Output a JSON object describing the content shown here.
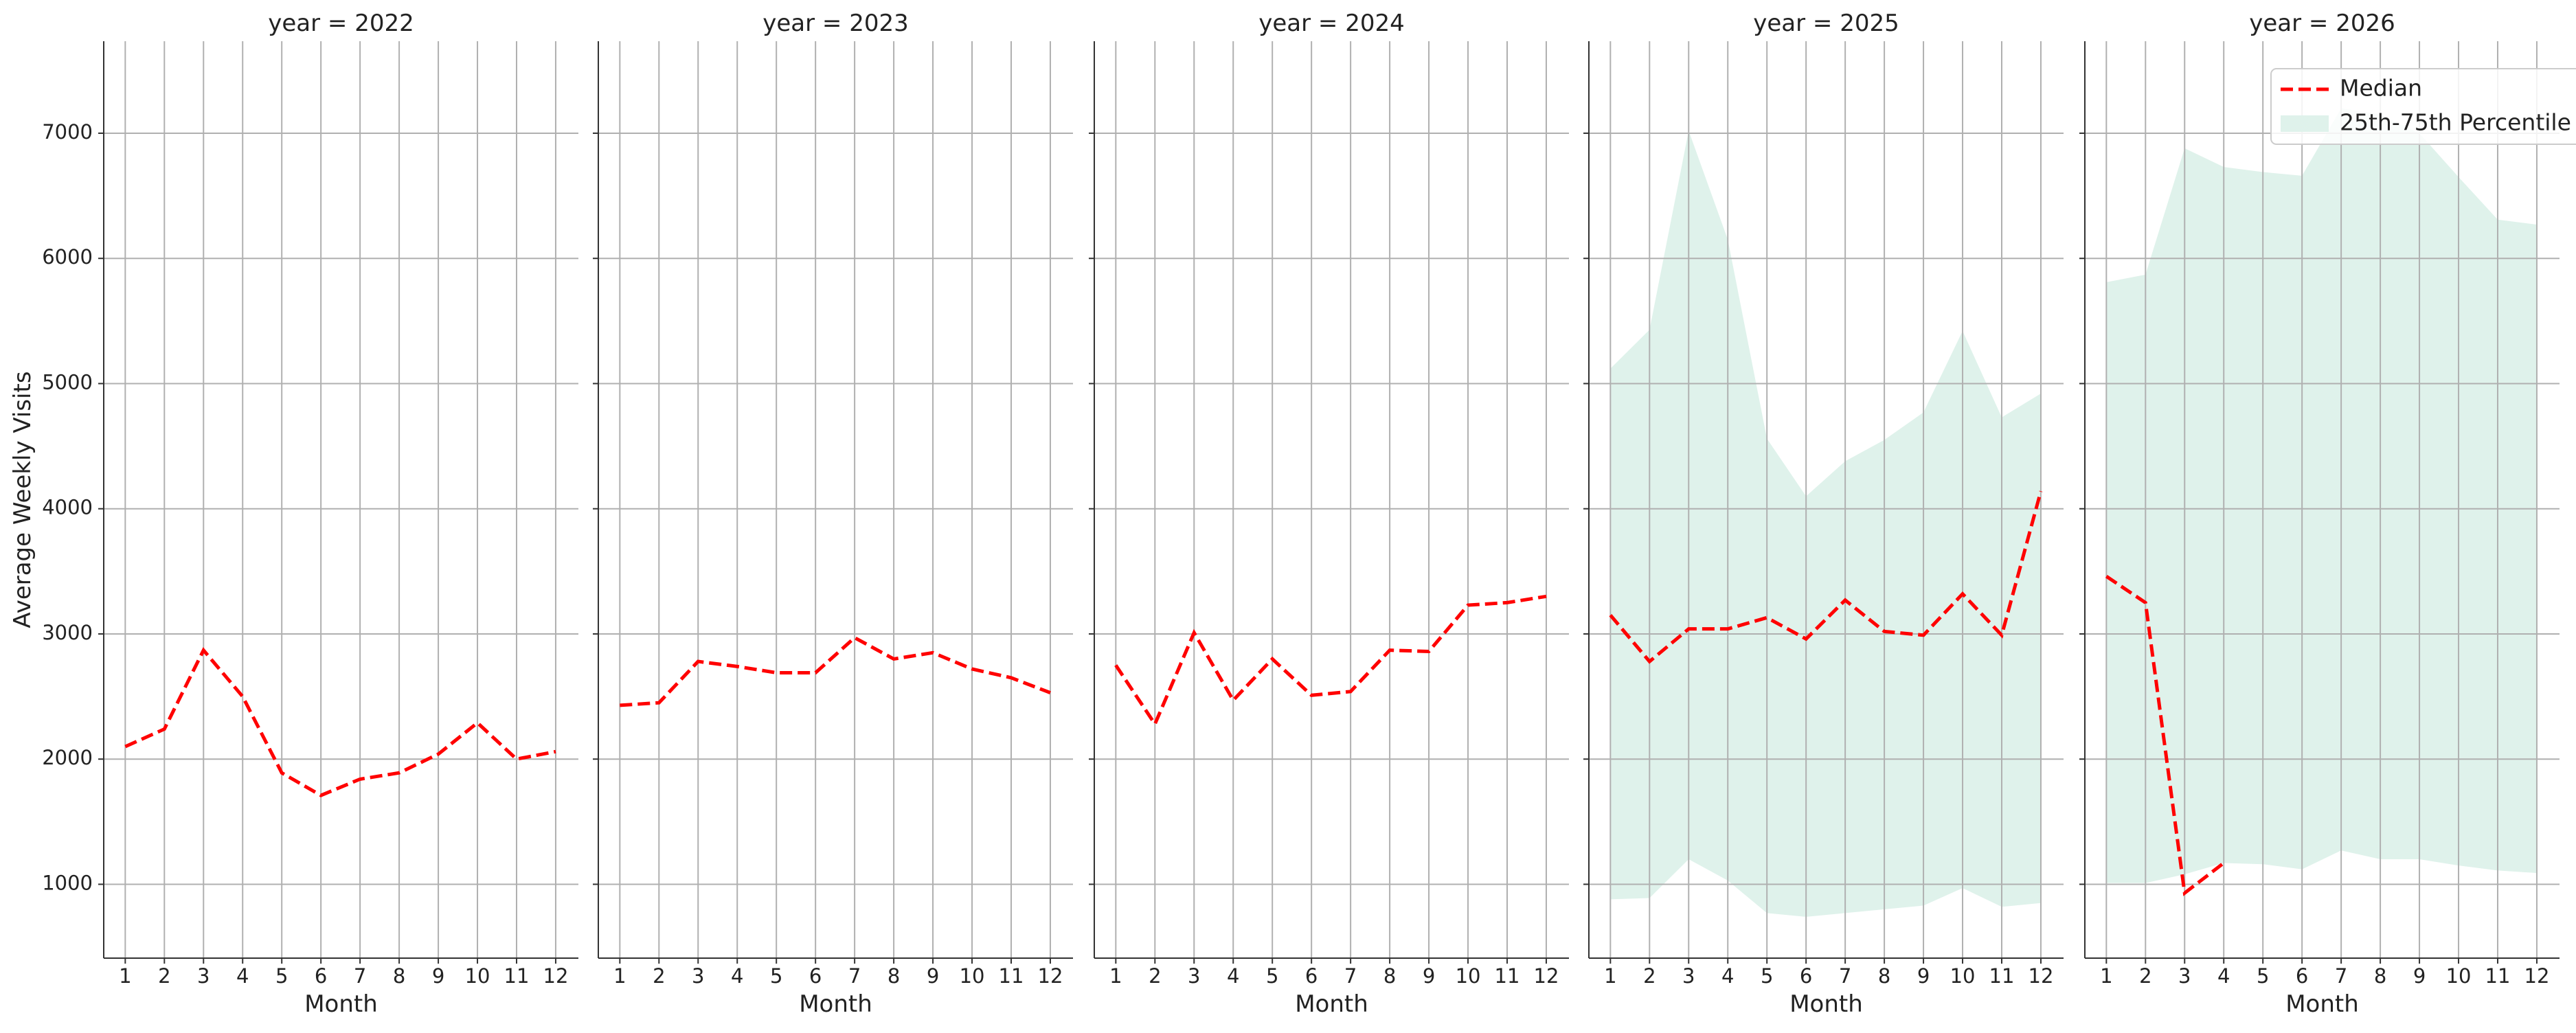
{
  "chart_data": [
    {
      "type": "line",
      "title": "year = 2022",
      "xlabel": "Month",
      "ylabel": "Average Weekly Visits",
      "show_ytick_labels": true,
      "x": [
        1,
        2,
        3,
        4,
        5,
        6,
        7,
        8,
        9,
        10,
        11,
        12
      ],
      "xlim": [
        0.45,
        12.58
      ],
      "xticks": [
        1,
        2,
        3,
        4,
        5,
        6,
        7,
        8,
        9,
        10,
        11,
        12
      ],
      "ylim": [
        410,
        7735
      ],
      "yticks": [
        1000,
        2000,
        3000,
        4000,
        5000,
        6000,
        7000
      ],
      "grid": true,
      "series": [
        {
          "color": "#ff0000",
          "style": "dashed",
          "values": [
            2100,
            2240,
            2870,
            2500,
            1890,
            1710,
            1840,
            1890,
            2040,
            2290,
            2000,
            2060
          ]
        }
      ]
    },
    {
      "type": "line",
      "title": "year = 2023",
      "xlabel": "Month",
      "show_ytick_labels": false,
      "x": [
        1,
        2,
        3,
        4,
        5,
        6,
        7,
        8,
        9,
        10,
        11,
        12
      ],
      "xlim": [
        0.45,
        12.58
      ],
      "xticks": [
        1,
        2,
        3,
        4,
        5,
        6,
        7,
        8,
        9,
        10,
        11,
        12
      ],
      "ylim": [
        410,
        7735
      ],
      "yticks": [
        1000,
        2000,
        3000,
        4000,
        5000,
        6000,
        7000
      ],
      "grid": true,
      "series": [
        {
          "color": "#ff0000",
          "style": "dashed",
          "values": [
            2430,
            2450,
            2780,
            2740,
            2690,
            2690,
            2970,
            2800,
            2850,
            2720,
            2650,
            2530
          ]
        }
      ]
    },
    {
      "type": "line",
      "title": "year = 2024",
      "xlabel": "Month",
      "show_ytick_labels": false,
      "x": [
        1,
        2,
        3,
        4,
        5,
        6,
        7,
        8,
        9,
        10,
        11,
        12
      ],
      "xlim": [
        0.45,
        12.58
      ],
      "xticks": [
        1,
        2,
        3,
        4,
        5,
        6,
        7,
        8,
        9,
        10,
        11,
        12
      ],
      "ylim": [
        410,
        7735
      ],
      "yticks": [
        1000,
        2000,
        3000,
        4000,
        5000,
        6000,
        7000
      ],
      "grid": true,
      "series": [
        {
          "color": "#ff0000",
          "style": "dashed",
          "values": [
            2750,
            2280,
            3010,
            2470,
            2800,
            2510,
            2540,
            2870,
            2860,
            3230,
            3250,
            3300
          ]
        }
      ]
    },
    {
      "type": "line",
      "title": "year = 2025",
      "xlabel": "Month",
      "show_ytick_labels": false,
      "x": [
        1,
        2,
        3,
        4,
        5,
        6,
        7,
        8,
        9,
        10,
        11,
        12
      ],
      "xlim": [
        0.45,
        12.58
      ],
      "xticks": [
        1,
        2,
        3,
        4,
        5,
        6,
        7,
        8,
        9,
        10,
        11,
        12
      ],
      "ylim": [
        410,
        7735
      ],
      "yticks": [
        1000,
        2000,
        3000,
        4000,
        5000,
        6000,
        7000
      ],
      "grid": true,
      "bands": [
        {
          "color": "#dff2eb",
          "low": [
            880,
            890,
            1200,
            1030,
            770,
            740,
            770,
            800,
            830,
            970,
            820,
            850
          ],
          "high": [
            5120,
            5430,
            7020,
            6150,
            4560,
            4100,
            4380,
            4550,
            4770,
            5420,
            4730,
            4920
          ]
        }
      ],
      "series": [
        {
          "color": "#ff0000",
          "style": "dashed",
          "values": [
            3150,
            2780,
            3040,
            3040,
            3130,
            2960,
            3270,
            3020,
            2990,
            3320,
            2990,
            4140
          ]
        }
      ]
    },
    {
      "type": "line",
      "title": "year = 2026",
      "xlabel": "Month",
      "show_ytick_labels": false,
      "x": [
        1,
        2,
        3,
        4,
        5,
        6,
        7,
        8,
        9,
        10,
        11,
        12
      ],
      "xlim": [
        0.45,
        12.58
      ],
      "xticks": [
        1,
        2,
        3,
        4,
        5,
        6,
        7,
        8,
        9,
        10,
        11,
        12
      ],
      "ylim": [
        410,
        7735
      ],
      "yticks": [
        1000,
        2000,
        3000,
        4000,
        5000,
        6000,
        7000
      ],
      "grid": true,
      "legend": "upper right",
      "bands": [
        {
          "name": "25th-75th Percentile",
          "color": "#dff2eb",
          "low": [
            1010,
            1010,
            1080,
            1170,
            1160,
            1120,
            1270,
            1200,
            1200,
            1150,
            1110,
            1090
          ],
          "high": [
            5810,
            5870,
            6880,
            6730,
            6690,
            6660,
            7200,
            7150,
            7000,
            6650,
            6310,
            6270
          ]
        }
      ],
      "series": [
        {
          "name": "Median",
          "color": "#ff0000",
          "style": "dashed",
          "values": [
            3460,
            3250,
            930,
            1170,
            null,
            null,
            null,
            null,
            null,
            null,
            null,
            null
          ]
        }
      ]
    }
  ]
}
